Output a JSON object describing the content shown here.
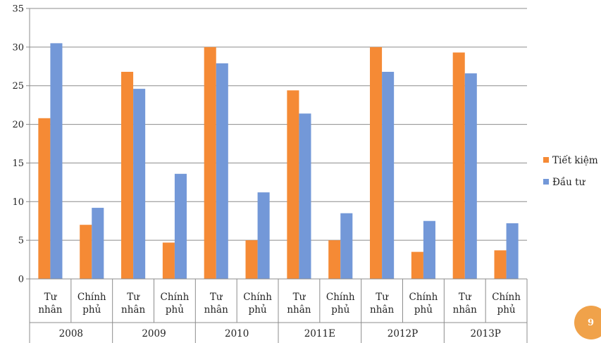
{
  "chart_data": {
    "type": "bar",
    "groups": [
      {
        "label": "2008",
        "categories": [
          "Tư nhân",
          "Chính phủ"
        ]
      },
      {
        "label": "2009",
        "categories": [
          "Tư nhân",
          "Chính phủ"
        ]
      },
      {
        "label": "2010",
        "categories": [
          "Tư nhân",
          "Chính phủ"
        ]
      },
      {
        "label": "2011E",
        "categories": [
          "Tư nhân",
          "Chính phủ"
        ]
      },
      {
        "label": "2012P",
        "categories": [
          "Tư nhân",
          "Chính phủ"
        ]
      },
      {
        "label": "2013P",
        "categories": [
          "Tư nhân",
          "Chính phủ"
        ]
      }
    ],
    "series": [
      {
        "name": "Tiết kiệm",
        "color": "#f58a35",
        "values": [
          20.8,
          7.0,
          26.8,
          4.7,
          30.0,
          5.0,
          24.4,
          5.0,
          30.0,
          3.5,
          29.3,
          3.7
        ]
      },
      {
        "name": "Đầu tư",
        "color": "#7398d8",
        "values": [
          30.5,
          9.2,
          24.6,
          13.6,
          27.9,
          11.2,
          21.4,
          8.5,
          26.8,
          7.5,
          26.6,
          7.2
        ]
      }
    ],
    "ylim": [
      0,
      35
    ],
    "yticks": [
      0,
      5,
      10,
      15,
      20,
      25,
      30,
      35
    ],
    "grid": true,
    "legend": "right"
  },
  "page_number": "9"
}
